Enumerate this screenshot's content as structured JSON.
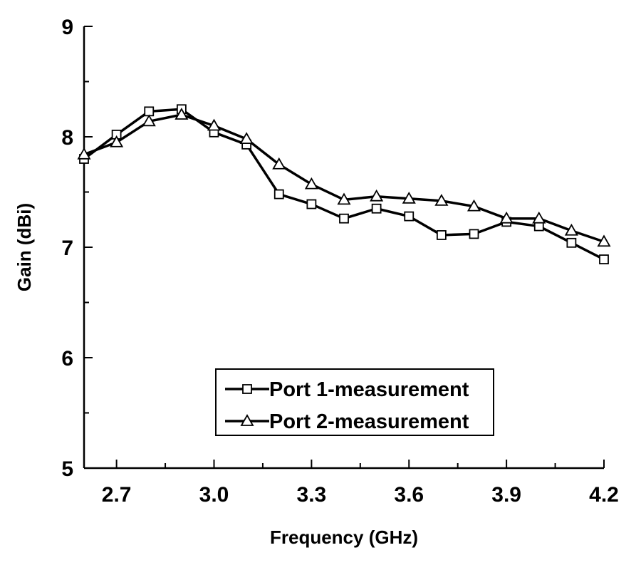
{
  "chart_data": {
    "type": "line",
    "xlabel": "Frequency (GHz)",
    "ylabel": "Gain (dBi)",
    "xlim": [
      2.6,
      4.2
    ],
    "ylim": [
      5,
      9
    ],
    "x_ticks": [
      "2.7",
      "3.0",
      "3.3",
      "3.6",
      "3.9",
      "4.2"
    ],
    "y_ticks": [
      "5",
      "6",
      "7",
      "8",
      "9"
    ],
    "grid": false,
    "legend_position": "lower-center",
    "x": [
      2.6,
      2.7,
      2.8,
      2.9,
      3.0,
      3.1,
      3.2,
      3.3,
      3.4,
      3.5,
      3.6,
      3.7,
      3.8,
      3.9,
      4.0,
      4.1,
      4.2
    ],
    "series": [
      {
        "name": "Port 1-measurement",
        "marker": "square",
        "values": [
          7.8,
          8.02,
          8.23,
          8.25,
          8.04,
          7.93,
          7.48,
          7.39,
          7.26,
          7.35,
          7.28,
          7.11,
          7.12,
          7.23,
          7.19,
          7.04,
          6.89
        ]
      },
      {
        "name": "Port 2-measurement",
        "marker": "triangle",
        "values": [
          7.84,
          7.95,
          8.14,
          8.2,
          8.1,
          7.98,
          7.75,
          7.57,
          7.43,
          7.46,
          7.44,
          7.42,
          7.37,
          7.26,
          7.26,
          7.15,
          7.05
        ]
      }
    ]
  }
}
